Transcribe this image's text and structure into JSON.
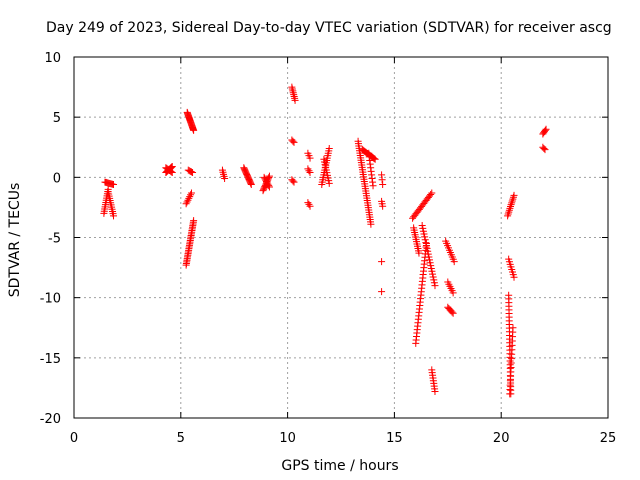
{
  "chart_data": {
    "type": "scatter",
    "title": "Day 249 of 2023, Sidereal Day-to-day VTEC variation (SDTVAR) for receiver ascg",
    "xlabel": "GPS time / hours",
    "ylabel": "SDTVAR / TECUs",
    "xlim": [
      0,
      25
    ],
    "ylim": [
      -20,
      10
    ],
    "xticks": [
      "0",
      "5",
      "10",
      "15",
      "20",
      "25"
    ],
    "yticks": [
      "-20",
      "-15",
      "-10",
      "-5",
      "0",
      "5",
      "10"
    ],
    "grid": true,
    "marker": "+",
    "colors": {
      "series": "#ff0000",
      "grid": "#a0a0a0",
      "axis": "#000000"
    },
    "series": [
      {
        "name": "SDTVAR",
        "segments": [
          {
            "x0": 1.45,
            "y0": -0.4,
            "x1": 1.85,
            "y1": -0.6,
            "n": 10
          },
          {
            "x0": 1.4,
            "y0": -3.0,
            "x1": 1.6,
            "y1": -1.0,
            "n": 12
          },
          {
            "x0": 1.6,
            "y0": -1.2,
            "x1": 1.85,
            "y1": -3.2,
            "n": 12
          },
          {
            "x0": 4.3,
            "y0": 0.4,
            "x1": 4.6,
            "y1": 0.9,
            "n": 12
          },
          {
            "x0": 4.3,
            "y0": 0.8,
            "x1": 4.6,
            "y1": 0.4,
            "n": 8
          },
          {
            "x0": 5.3,
            "y0": 5.4,
            "x1": 5.6,
            "y1": 3.9,
            "n": 20
          },
          {
            "x0": 5.35,
            "y0": 0.6,
            "x1": 5.55,
            "y1": 0.4,
            "n": 5
          },
          {
            "x0": 5.25,
            "y0": -2.2,
            "x1": 5.5,
            "y1": -1.3,
            "n": 7
          },
          {
            "x0": 5.25,
            "y0": -7.3,
            "x1": 5.6,
            "y1": -3.6,
            "n": 28
          },
          {
            "x0": 6.95,
            "y0": 0.6,
            "x1": 7.05,
            "y1": -0.1,
            "n": 5
          },
          {
            "x0": 7.95,
            "y0": 0.8,
            "x1": 8.3,
            "y1": -0.6,
            "n": 16
          },
          {
            "x0": 8.85,
            "y0": -1.1,
            "x1": 9.15,
            "y1": 0.1,
            "n": 12
          },
          {
            "x0": 8.9,
            "y0": 0.0,
            "x1": 9.15,
            "y1": -0.8,
            "n": 8
          },
          {
            "x0": 10.2,
            "y0": 7.5,
            "x1": 10.35,
            "y1": 6.4,
            "n": 8
          },
          {
            "x0": 10.2,
            "y0": 3.1,
            "x1": 10.3,
            "y1": 2.9,
            "n": 3
          },
          {
            "x0": 10.2,
            "y0": -0.2,
            "x1": 10.3,
            "y1": -0.4,
            "n": 3
          },
          {
            "x0": 10.95,
            "y0": 2.0,
            "x1": 11.05,
            "y1": 1.6,
            "n": 3
          },
          {
            "x0": 10.95,
            "y0": 0.7,
            "x1": 11.05,
            "y1": 0.4,
            "n": 3
          },
          {
            "x0": 10.95,
            "y0": -2.1,
            "x1": 11.05,
            "y1": -2.4,
            "n": 3
          },
          {
            "x0": 11.6,
            "y0": -0.6,
            "x1": 11.95,
            "y1": 2.4,
            "n": 16
          },
          {
            "x0": 11.7,
            "y0": 1.5,
            "x1": 11.95,
            "y1": -0.5,
            "n": 10
          },
          {
            "x0": 13.3,
            "y0": 3.0,
            "x1": 13.9,
            "y1": -3.9,
            "n": 36
          },
          {
            "x0": 13.5,
            "y0": 2.3,
            "x1": 14.1,
            "y1": 1.5,
            "n": 16
          },
          {
            "x0": 13.8,
            "y0": 2.0,
            "x1": 14.0,
            "y1": -0.7,
            "n": 10
          },
          {
            "x0": 14.4,
            "y0": 0.2,
            "x1": 14.45,
            "y1": -0.6,
            "n": 3
          },
          {
            "x0": 14.4,
            "y0": -2.0,
            "x1": 14.45,
            "y1": -2.4,
            "n": 3
          },
          {
            "x0": 14.4,
            "y0": -7.0,
            "x1": 14.4,
            "y1": -7.0,
            "n": 1
          },
          {
            "x0": 14.4,
            "y0": -9.5,
            "x1": 14.4,
            "y1": -9.5,
            "n": 1
          },
          {
            "x0": 15.85,
            "y0": -3.4,
            "x1": 16.75,
            "y1": -1.3,
            "n": 18
          },
          {
            "x0": 15.9,
            "y0": -4.2,
            "x1": 16.15,
            "y1": -6.3,
            "n": 12
          },
          {
            "x0": 16.3,
            "y0": -4.0,
            "x1": 16.9,
            "y1": -9.0,
            "n": 22
          },
          {
            "x0": 16.0,
            "y0": -13.8,
            "x1": 16.5,
            "y1": -5.5,
            "n": 30
          },
          {
            "x0": 16.75,
            "y0": -16.0,
            "x1": 16.9,
            "y1": -17.8,
            "n": 9
          },
          {
            "x0": 17.4,
            "y0": -5.3,
            "x1": 17.8,
            "y1": -7.0,
            "n": 10
          },
          {
            "x0": 17.5,
            "y0": -8.7,
            "x1": 17.75,
            "y1": -9.6,
            "n": 6
          },
          {
            "x0": 17.5,
            "y0": -10.8,
            "x1": 17.75,
            "y1": -11.3,
            "n": 6
          },
          {
            "x0": 20.3,
            "y0": -3.2,
            "x1": 20.6,
            "y1": -1.5,
            "n": 12
          },
          {
            "x0": 20.35,
            "y0": -6.8,
            "x1": 20.6,
            "y1": -8.3,
            "n": 8
          },
          {
            "x0": 20.35,
            "y0": -9.8,
            "x1": 20.45,
            "y1": -18.0,
            "n": 28
          },
          {
            "x0": 20.4,
            "y0": -18.0,
            "x1": 20.55,
            "y1": -12.5,
            "n": 16
          },
          {
            "x0": 21.95,
            "y0": 3.6,
            "x1": 22.1,
            "y1": 4.0,
            "n": 5
          },
          {
            "x0": 21.95,
            "y0": 2.5,
            "x1": 22.05,
            "y1": 2.3,
            "n": 3
          }
        ]
      }
    ]
  }
}
